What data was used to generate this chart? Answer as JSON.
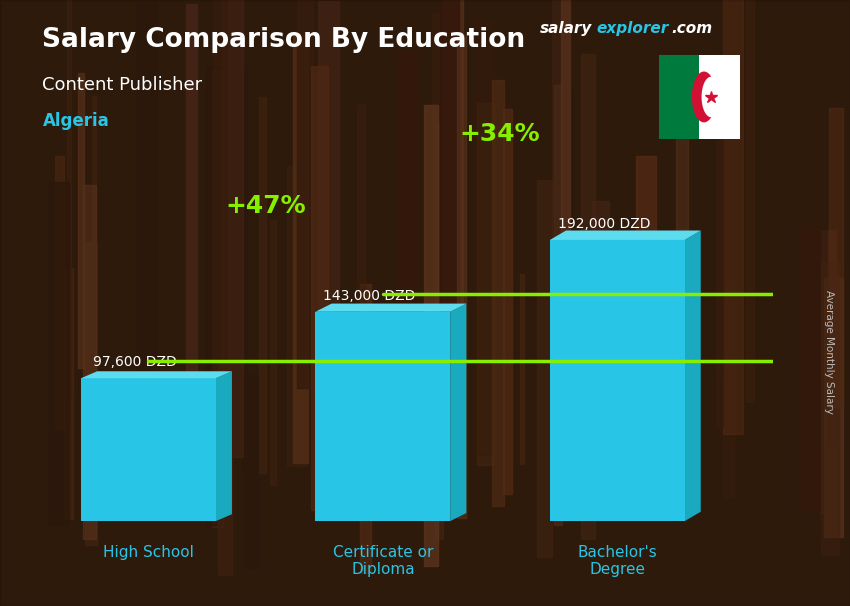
{
  "title": "Salary Comparison By Education",
  "subtitle": "Content Publisher",
  "country": "Algeria",
  "categories": [
    "High School",
    "Certificate or\nDiploma",
    "Bachelor's\nDegree"
  ],
  "values": [
    97600,
    143000,
    192000
  ],
  "value_labels": [
    "97,600 DZD",
    "143,000 DZD",
    "192,000 DZD"
  ],
  "bar_color_face": "#29c5e6",
  "bar_color_top": "#5ddcf0",
  "bar_color_side": "#1aaabf",
  "pct_changes": [
    "+47%",
    "+34%"
  ],
  "pct_color": "#88ee00",
  "bg_color": "#5a3a22",
  "title_color": "#ffffff",
  "subtitle_color": "#ffffff",
  "country_color": "#29c5e6",
  "value_label_color": "#ffffff",
  "cat_label_color": "#29c5e6",
  "axis_label": "Average Monthly Salary",
  "axis_label_color": "#bbbbbb",
  "brand_salary_color": "#ffffff",
  "brand_explorer_color": "#29c5e6",
  "brand_com_color": "#ffffff",
  "flag_green": "#007a3d",
  "flag_white": "#ffffff",
  "flag_red": "#d21034"
}
